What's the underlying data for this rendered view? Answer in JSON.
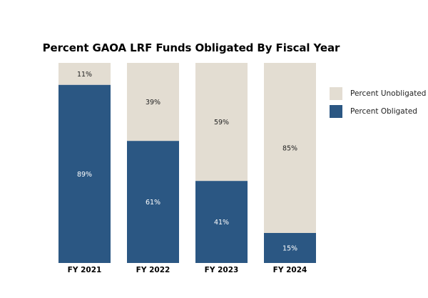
{
  "colors": {
    "obligated": "#2B5783",
    "unobligated": "#E3DDD2",
    "label_on_dark": "#FFFFFF",
    "label_on_light": "#222222"
  },
  "legend": {
    "unobligated_label": "Percent Unobligated",
    "obligated_label": "Percent Obligated"
  },
  "chart_data": {
    "type": "bar",
    "stacked": true,
    "title": "Percent GAOA LRF Funds Obligated By Fiscal Year",
    "xlabel": "",
    "ylabel": "",
    "ylim": [
      0,
      100
    ],
    "grid": false,
    "legend_position": "right",
    "categories": [
      "FY 2021",
      "FY 2022",
      "FY 2023",
      "FY 2024"
    ],
    "series": [
      {
        "name": "Percent Obligated",
        "values": [
          89,
          61,
          41,
          15
        ],
        "labels": [
          "89%",
          "61%",
          "41%",
          "15%"
        ]
      },
      {
        "name": "Percent Unobligated",
        "values": [
          11,
          39,
          59,
          85
        ],
        "labels": [
          "11%",
          "39%",
          "59%",
          "85%"
        ]
      }
    ]
  }
}
